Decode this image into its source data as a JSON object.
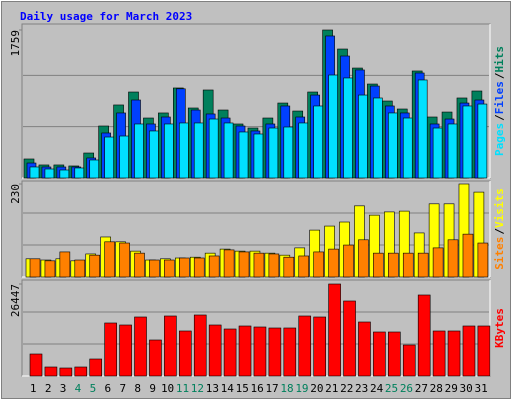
{
  "chart_data": {
    "type": "bar",
    "title": "Daily usage for March 2023",
    "legend_separator": "/",
    "categories": [
      "1",
      "2",
      "3",
      "4",
      "5",
      "6",
      "7",
      "8",
      "9",
      "10",
      "11",
      "12",
      "13",
      "14",
      "15",
      "16",
      "17",
      "18",
      "19",
      "20",
      "21",
      "22",
      "23",
      "24",
      "25",
      "26",
      "27",
      "28",
      "29",
      "30",
      "31"
    ],
    "category_colors": [
      "#000000",
      "#000000",
      "#000000",
      "#00805c",
      "#00805c",
      "#000000",
      "#000000",
      "#000000",
      "#000000",
      "#000000",
      "#00805c",
      "#00805c",
      "#000000",
      "#000000",
      "#000000",
      "#000000",
      "#000000",
      "#00805c",
      "#00805c",
      "#000000",
      "#000000",
      "#000000",
      "#000000",
      "#000000",
      "#00805c",
      "#00805c",
      "#000000",
      "#000000",
      "#000000",
      "#000000",
      "#000000"
    ],
    "panels": [
      {
        "ylim": [
          0,
          1759
        ],
        "yticks": [
          1759
        ],
        "series": [
          {
            "name": "Hits",
            "color": "#00805c",
            "values": [
              226,
              155,
              155,
              143,
              297,
              618,
              868,
              1022,
              713,
              773,
              1070,
              832,
              1046,
              808,
              642,
              594,
              713,
              891,
              796,
              1022,
              1759,
              1533,
              1307,
              1117,
              915,
              820,
              1272,
              725,
              784,
              951,
              1034
            ]
          },
          {
            "name": "Files",
            "color": "#0040ff",
            "values": [
              178,
              131,
              131,
              131,
              238,
              535,
              773,
              927,
              642,
              725,
              1060,
              808,
              761,
              713,
              618,
              559,
              642,
              856,
              725,
              986,
              1688,
              1450,
              1284,
              1093,
              856,
              773,
              1248,
              642,
              701,
              891,
              927
            ]
          },
          {
            "name": "Pages",
            "color": "#00e0ff",
            "values": [
              131,
              107,
              95,
              119,
              214,
              487,
              499,
              642,
              559,
              642,
              654,
              654,
              701,
              654,
              547,
              523,
              594,
              606,
              654,
              856,
              1224,
              1189,
              986,
              951,
              773,
              713,
              1165,
              594,
              642,
              856,
              879
            ]
          }
        ]
      },
      {
        "ylim": [
          0,
          230
        ],
        "yticks": [
          230
        ],
        "series": [
          {
            "name": "Visits",
            "color": "#ffff00",
            "values": [
              45,
              42,
              45,
              40,
              57,
              99,
              87,
              64,
              42,
              45,
              47,
              49,
              59,
              69,
              64,
              64,
              59,
              54,
              72,
              116,
              126,
              136,
              176,
              153,
              161,
              163,
              109,
              181,
              181,
              230,
              210
            ]
          },
          {
            "name": "Sites",
            "color": "#ff8000",
            "values": [
              45,
              40,
              62,
              42,
              54,
              87,
              84,
              59,
              42,
              42,
              47,
              47,
              52,
              67,
              62,
              59,
              57,
              49,
              52,
              62,
              69,
              79,
              92,
              59,
              59,
              59,
              59,
              72,
              92,
              106,
              84
            ]
          }
        ]
      },
      {
        "ylim": [
          0,
          26447
        ],
        "yticks": [
          26447
        ],
        "series": [
          {
            "name": "KBytes",
            "color": "#ff0000",
            "values": [
              6325,
              2588,
              2300,
              2588,
              4888,
              15238,
              14663,
              16963,
              10350,
              17250,
              12938,
              17538,
              14663,
              13513,
              14375,
              14088,
              13800,
              13800,
              17250,
              16963,
              26447,
              21563,
              15525,
              12650,
              12650,
              8913,
              23288,
              12938,
              12938,
              14375,
              14375
            ]
          }
        ]
      }
    ]
  }
}
